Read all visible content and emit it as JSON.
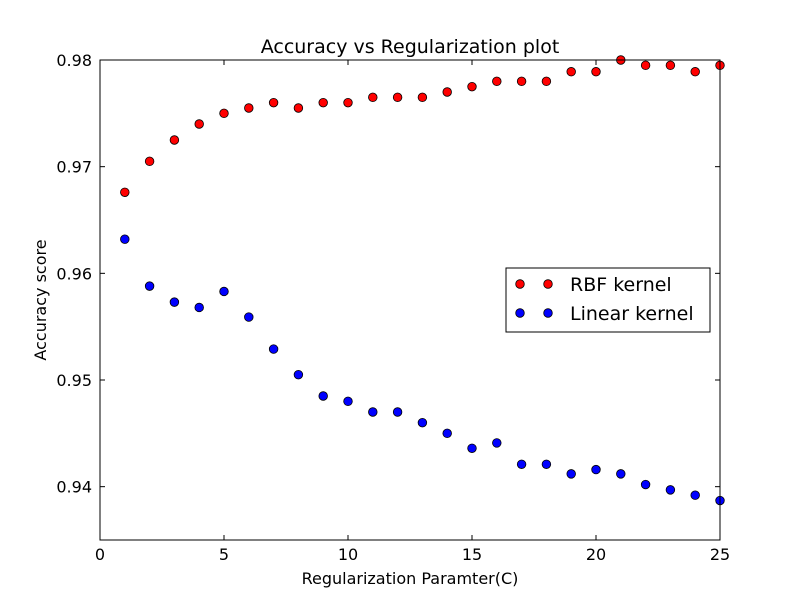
{
  "chart_data": {
    "type": "scatter",
    "title": "Accuracy vs Regularization plot",
    "xlabel": "Regularization Paramter(C)",
    "ylabel": "Accuracy score",
    "xlim": [
      0,
      25
    ],
    "ylim": [
      0.935,
      0.98
    ],
    "xticks": [
      0,
      5,
      10,
      15,
      20,
      25
    ],
    "yticks": [
      0.94,
      0.95,
      0.96,
      0.97,
      0.98
    ],
    "grid": false,
    "legend_position": "center-right",
    "x": [
      1,
      2,
      3,
      4,
      5,
      6,
      7,
      8,
      9,
      10,
      11,
      12,
      13,
      14,
      15,
      16,
      17,
      18,
      19,
      20,
      21,
      22,
      23,
      24,
      25
    ],
    "series": [
      {
        "name": "RBF kernel",
        "color": "#ff0000",
        "values": [
          0.9676,
          0.9705,
          0.9725,
          0.974,
          0.975,
          0.9755,
          0.976,
          0.9755,
          0.976,
          0.976,
          0.9765,
          0.9765,
          0.9765,
          0.977,
          0.9775,
          0.978,
          0.978,
          0.978,
          0.9789,
          0.9789,
          0.98,
          0.9795,
          0.9795,
          0.9789,
          0.9795
        ]
      },
      {
        "name": "Linear kernel",
        "color": "#0000ff",
        "values": [
          0.9632,
          0.9588,
          0.9573,
          0.9568,
          0.9583,
          0.9559,
          0.9529,
          0.9505,
          0.9485,
          0.948,
          0.947,
          0.947,
          0.946,
          0.945,
          0.9436,
          0.9441,
          0.9421,
          0.9421,
          0.9412,
          0.9416,
          0.9412,
          0.9402,
          0.9397,
          0.9392,
          0.9387
        ]
      }
    ]
  }
}
